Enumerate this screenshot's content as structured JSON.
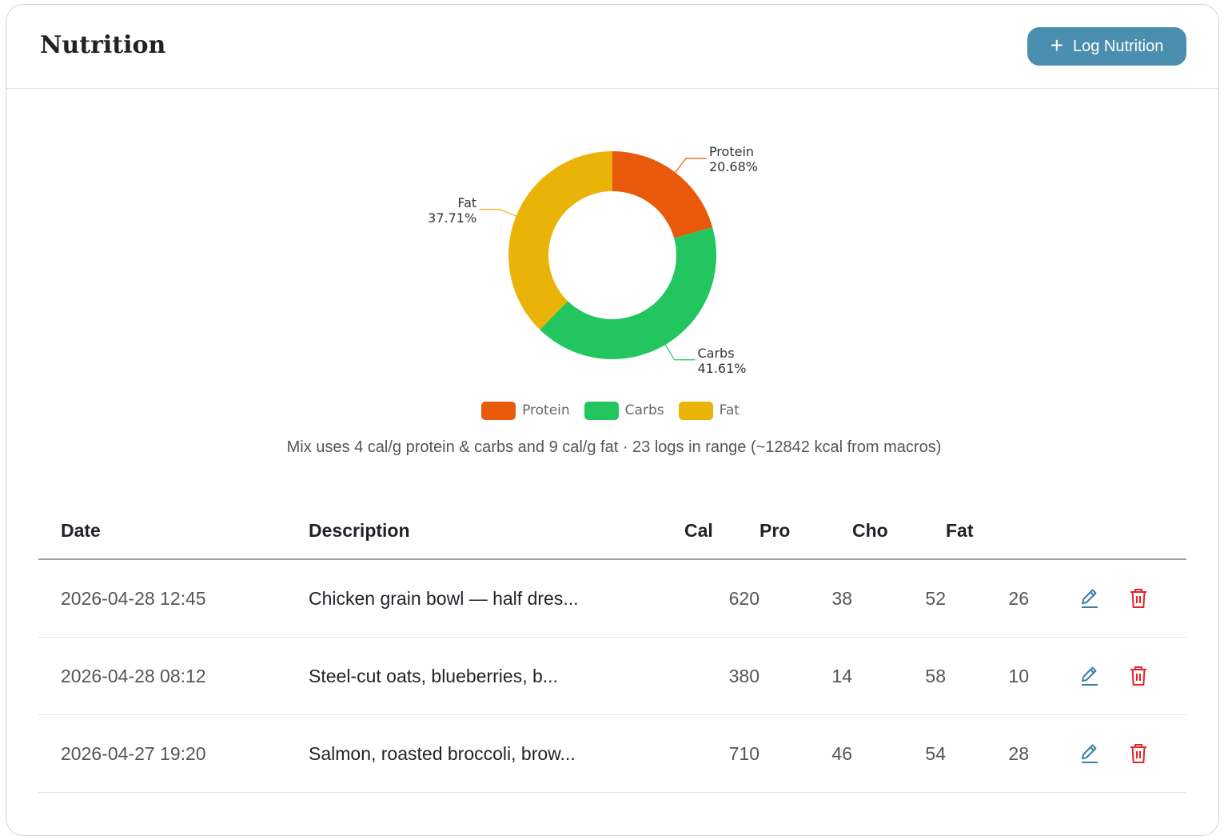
{
  "header": {
    "title": "Nutrition",
    "log_button_label": "Log Nutrition"
  },
  "chart_data": {
    "type": "pie",
    "categories": [
      "Protein",
      "Carbs",
      "Fat"
    ],
    "values": [
      20.68,
      41.61,
      37.71
    ],
    "slice_labels": [
      "Protein",
      "Carbs",
      "Fat"
    ],
    "percent_labels": [
      "20.68%",
      "41.61%",
      "37.71%"
    ],
    "colors": [
      "#e8590c",
      "#22c55e",
      "#eab308"
    ],
    "donut": true,
    "legend": [
      "Protein",
      "Carbs",
      "Fat"
    ],
    "legend_position": "bottom"
  },
  "caption": "Mix uses 4 cal/g protein & carbs and 9 cal/g fat · 23 logs in range (~12842 kcal from macros)",
  "table": {
    "columns": [
      "Date",
      "Description",
      "Cal",
      "Pro",
      "Cho",
      "Fat"
    ],
    "rows": [
      {
        "date": "2026-04-28 12:45",
        "description": "Chicken grain bowl — half dres...",
        "cal": "620",
        "pro": "38",
        "cho": "52",
        "fat": "26"
      },
      {
        "date": "2026-04-28 08:12",
        "description": "Steel-cut oats, blueberries, b...",
        "cal": "380",
        "pro": "14",
        "cho": "58",
        "fat": "10"
      },
      {
        "date": "2026-04-27 19:20",
        "description": "Salmon, roasted broccoli, brow...",
        "cal": "710",
        "pro": "46",
        "cho": "54",
        "fat": "28"
      }
    ]
  },
  "icons": {
    "edit": "pencil-icon",
    "delete": "trash-icon"
  },
  "colors": {
    "accent": "#4b8fb0",
    "edit": "#3a7fa8",
    "delete": "#e5232b"
  }
}
